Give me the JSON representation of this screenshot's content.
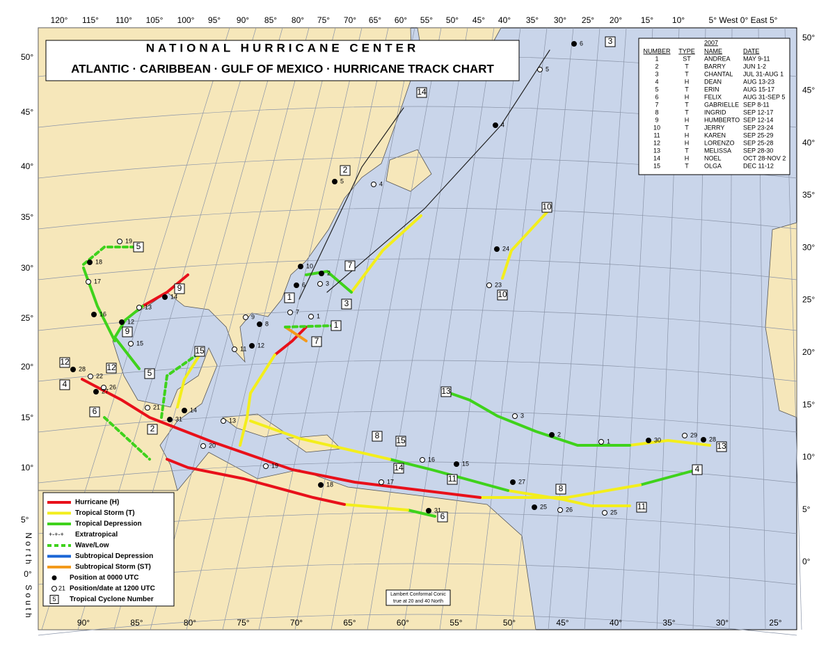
{
  "header": {
    "title": "NATIONAL HURRICANE CENTER",
    "subtitle": "ATLANTIC · CARIBBEAN · GULF OF MEXICO · HURRICANE TRACK CHART"
  },
  "storm_table": {
    "year": "2007",
    "columns": [
      "NUMBER",
      "TYPE",
      "NAME",
      "DATE"
    ],
    "rows": [
      [
        "1",
        "ST",
        "ANDREA",
        "MAY 9-11"
      ],
      [
        "2",
        "T",
        "BARRY",
        "JUN 1-2"
      ],
      [
        "3",
        "T",
        "CHANTAL",
        "JUL 31-AUG 1"
      ],
      [
        "4",
        "H",
        "DEAN",
        "AUG 13-23"
      ],
      [
        "5",
        "T",
        "ERIN",
        "AUG 15-17"
      ],
      [
        "6",
        "H",
        "FELIX",
        "AUG 31-SEP 5"
      ],
      [
        "7",
        "T",
        "GABRIELLE",
        "SEP 8-11"
      ],
      [
        "8",
        "T",
        "INGRID",
        "SEP 12-17"
      ],
      [
        "9",
        "H",
        "HUMBERTO",
        "SEP 12-14"
      ],
      [
        "10",
        "T",
        "JERRY",
        "SEP 23-24"
      ],
      [
        "11",
        "H",
        "KAREN",
        "SEP 25-29"
      ],
      [
        "12",
        "H",
        "LORENZO",
        "SEP 25-28"
      ],
      [
        "13",
        "T",
        "MELISSA",
        "SEP 28-30"
      ],
      [
        "14",
        "H",
        "NOEL",
        "OCT 28-NOV 2"
      ],
      [
        "15",
        "T",
        "OLGA",
        "DEC 11-12"
      ]
    ]
  },
  "legend": {
    "items": [
      "Hurricane (H)",
      "Tropical Storm (T)",
      "Tropical Depression",
      "Extratropical",
      "Wave/Low",
      "Subtropical Depression",
      "Subtropical Storm (ST)",
      "Position at 0000 UTC",
      "Position/date at 1200 UTC",
      "Tropical Cyclone Number"
    ],
    "extratropical_symbol": "+-+-+",
    "sample_date": "21",
    "sample_number": "5"
  },
  "longitude_top": [
    "120°",
    "115°",
    "110°",
    "105°",
    "100°",
    "95°",
    "90°",
    "85°",
    "80°",
    "75°",
    "70°",
    "65°",
    "60°",
    "55°",
    "50°",
    "45°",
    "40°",
    "35°",
    "30°",
    "25°",
    "20°",
    "15°",
    "10°",
    "5° West 0° East 5°"
  ],
  "longitude_bottom": [
    "90°",
    "85°",
    "80°",
    "75°",
    "70°",
    "65°",
    "60°",
    "55°",
    "50°",
    "45°",
    "40°",
    "35°",
    "30°",
    "25°"
  ],
  "latitude_left": [
    "50°",
    "45°",
    "40°",
    "35°",
    "30°",
    "25°",
    "20°",
    "15°",
    "10°",
    "5°"
  ],
  "latitude_right": [
    "50°",
    "45°",
    "40°",
    "35°",
    "30°",
    "25°",
    "20°",
    "15°",
    "10°",
    "5°",
    "0°"
  ],
  "equator_label": {
    "north": "North",
    "zero": "0°",
    "south": "South"
  },
  "projection_note": [
    "Lambert Conformal Conic",
    "true at 20 and 40 North"
  ],
  "storm_labels": [
    "14",
    "2",
    "10",
    "3",
    "5",
    "9",
    "7",
    "3",
    "1",
    "10",
    "1",
    "7",
    "9",
    "5",
    "15",
    "12",
    "4",
    "12",
    "6",
    "2",
    "13",
    "13",
    "8",
    "15",
    "14",
    "11",
    "8",
    "4",
    "11",
    "6"
  ],
  "track_labels": [
    "19",
    "18",
    "17",
    "16",
    "13",
    "12",
    "15",
    "14",
    "22",
    "28",
    "26",
    "27",
    "21",
    "31",
    "20",
    "14",
    "13",
    "6",
    "5",
    "4",
    "3",
    "2",
    "1",
    "30",
    "29",
    "28",
    "25",
    "24",
    "23",
    "31",
    "3",
    "2",
    "1",
    "5",
    "4",
    "10",
    "9",
    "8",
    "7",
    "6",
    "11",
    "12",
    "16",
    "15",
    "17",
    "18",
    "19",
    "27",
    "26",
    "25"
  ]
}
